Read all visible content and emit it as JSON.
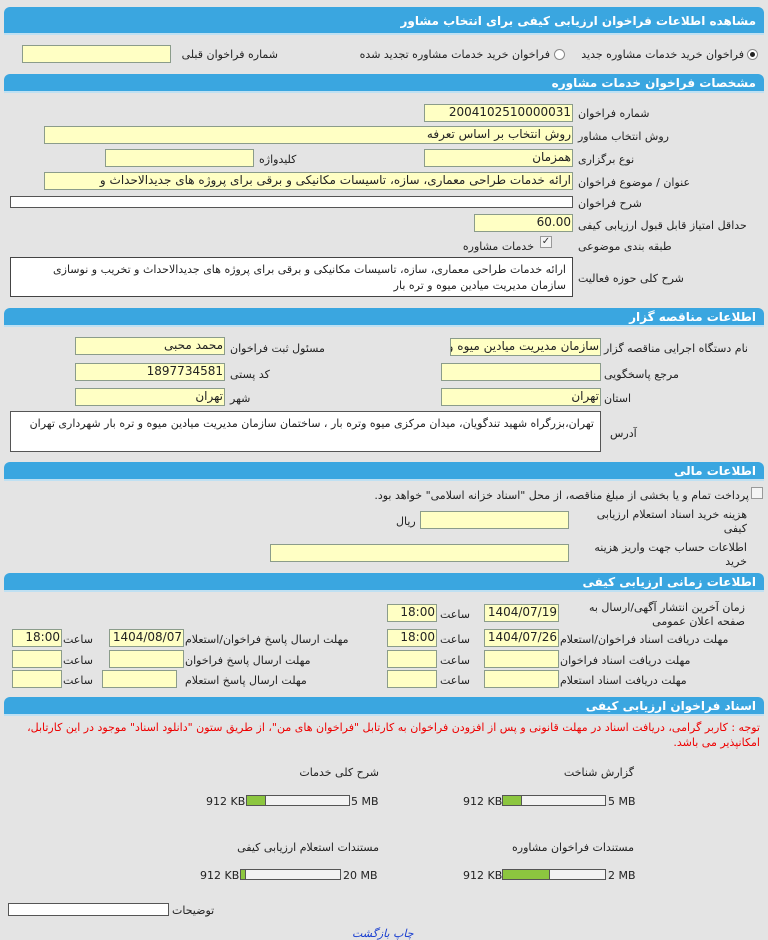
{
  "title": "مشاهده اطلاعات فراخوان ارزیابی کیفی برای انتخاب مشاور",
  "call_type": {
    "option_new": "فراخوان خرید خدمات مشاوره جدید",
    "option_renewed": "فراخوان خرید خدمات مشاوره تجدید شده",
    "selected": "new",
    "previous_number_label": "شماره فراخوان قبلی",
    "previous_number_value": ""
  },
  "specs": {
    "header": "مشخصات فراخوان خدمات مشاوره",
    "number_label": "شماره فراخوان",
    "number_value": "2004102510000031",
    "method_label": "روش انتخاب مشاور",
    "method_value": "روش انتخاب بر اساس تعرفه",
    "holding_label": "نوع برگزاری",
    "holding_value": "همزمان",
    "keyword_label": "کلیدواژه",
    "keyword_value": "",
    "subject_label": "عنوان / موضوع فراخوان",
    "subject_value": "ارائه خدمات طراحی معماری، سازه، تاسیسات مکانیکی و برقی برای پروژه های جدیدالاحداث و",
    "description_label": "شرح فراخوان",
    "description_value": "",
    "min_score_label": "حداقل امتیاز قابل قبول ارزیابی کیفی",
    "min_score_value": "60.00",
    "category_label": "طبقه بندی موضوعی",
    "category_value": "خدمات مشاوره",
    "category_checked": true,
    "scope_label": "شرح کلی حوزه فعالیت",
    "scope_value": "ارائه خدمات طراحی معماری، سازه، تاسیسات مکانیکی و برقی برای پروژه های جدیدالاحداث و تخریب و نوسازی سازمان مدیریت میادین میوه و تره بار"
  },
  "tenderer": {
    "header": "اطلاعات مناقصه گزار",
    "org_label": "نام دستگاه اجرایی مناقصه گزار",
    "org_value": "سازمان مدیریت میادین میوه و تره بار",
    "registrar_label": "مسئول ثبت فراخوان",
    "registrar_value": "محمد محبی",
    "reference_label": "مرجع پاسخگویی",
    "reference_value": "",
    "postal_label": "کد پستی",
    "postal_value": "1897734581",
    "province_label": "استان",
    "province_value": "تهران",
    "city_label": "شهر",
    "city_value": "تهران",
    "address_label": "آدرس",
    "address_value": "تهران،بزرگراه شهید تندگویان، میدان مرکزی میوه وتره بار ، ساختمان سازمان مدیریت میادین میوه و تره بار شهرداری تهران"
  },
  "financial": {
    "header": "اطلاعات مالی",
    "treasury_text": "پرداخت تمام و یا بخشی از مبلغ مناقصه، از محل \"اسناد خزانه اسلامی\" خواهد بود.",
    "treasury_checked": false,
    "fee_label": "هزینه خرید اسناد استعلام ارزیابی کیفی",
    "fee_value": "",
    "fee_unit": "ریال",
    "account_label": "اطلاعات حساب جهت واریز هزینه خرید",
    "account_value": ""
  },
  "schedule": {
    "header": "اطلاعات زمانی ارزیابی کیفی",
    "hour_label": "ساعت",
    "publish_label": "زمان آخرین انتشار آگهی/ارسال به صفحه اعلان عمومی",
    "publish_date": "1404/07/19",
    "publish_time": "18:00",
    "receive_label": "مهلت دریافت اسناد فراخوان/استعلام",
    "receive_date": "1404/07/26",
    "receive_time": "18:00",
    "submit_label": "مهلت ارسال پاسخ فراخوان/استعلام",
    "submit_date": "1404/08/07",
    "submit_time": "18:00",
    "receive_call_label": "مهلت دریافت اسناد فراخوان",
    "receive_call_date": "",
    "receive_call_time": "",
    "submit_call_label": "مهلت ارسال پاسخ فراخوان",
    "submit_call_date": "",
    "submit_call_time": "",
    "receive_inquiry_label": "مهلت دریافت اسناد استعلام",
    "receive_inquiry_date": "",
    "receive_inquiry_time": "",
    "submit_inquiry_label": "مهلت ارسال پاسخ استعلام",
    "submit_inquiry_date": "",
    "submit_inquiry_time": ""
  },
  "documents": {
    "header": "اسناد فراخوان ارزیابی کیفی",
    "notice": "توجه : کاربر گرامی، دریافت اسناد در مهلت قانونی و پس از افزودن فراخوان به کارتابل \"فراخوان های من\"، از طریق ستون \"دانلود اسناد\" موجود در این کارتابل، امکانپذیر می باشد.",
    "notice_color": "#e00000",
    "items": [
      {
        "label": "گزارش شناخت",
        "size": "912 KB",
        "max": "5 MB",
        "fraction": 0.18
      },
      {
        "label": "شرح کلی خدمات",
        "size": "912 KB",
        "max": "5 MB",
        "fraction": 0.18
      },
      {
        "label": "مستندات فراخوان مشاوره",
        "size": "912 KB",
        "max": "2 MB",
        "fraction": 0.45
      },
      {
        "label": "مستندات استعلام ارزیابی کیفی",
        "size": "912 KB",
        "max": "20 MB",
        "fraction": 0.045
      }
    ],
    "notes_label": "توضیحات",
    "notes_value": ""
  },
  "footer": {
    "print_label": "چاپ",
    "back_label": "بازگشت"
  },
  "colors": {
    "header": "#3aa6e0",
    "input": "#ffffc4",
    "progress": "#8cc63f",
    "link": "#1a3fd0"
  }
}
